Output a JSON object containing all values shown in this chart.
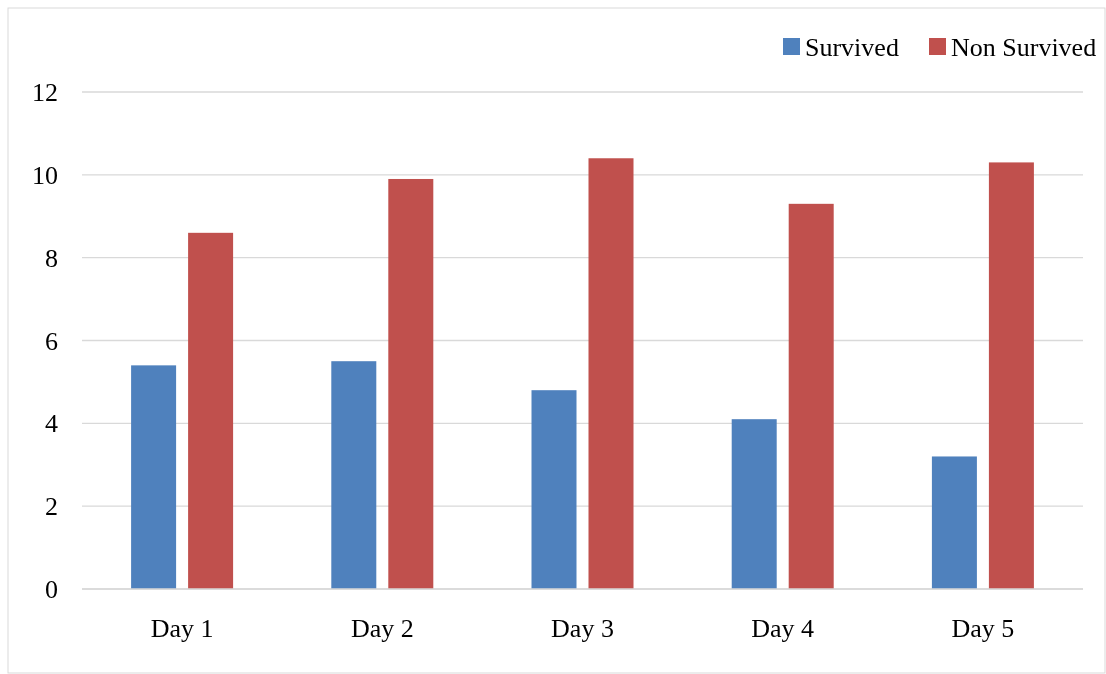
{
  "chart_data": {
    "type": "bar",
    "categories": [
      "Day 1",
      "Day 2",
      "Day 3",
      "Day 4",
      "Day 5"
    ],
    "series": [
      {
        "name": "Survived",
        "color": "#4f81bd",
        "values": [
          5.4,
          5.5,
          4.8,
          4.1,
          3.2
        ]
      },
      {
        "name": "Non Survived",
        "color": "#c0504d",
        "values": [
          8.6,
          9.9,
          10.4,
          9.3,
          10.3
        ]
      }
    ],
    "ylim": [
      0,
      12
    ],
    "yticks": [
      0,
      2,
      4,
      6,
      8,
      10,
      12
    ],
    "grid": "y",
    "legend": "top right"
  }
}
